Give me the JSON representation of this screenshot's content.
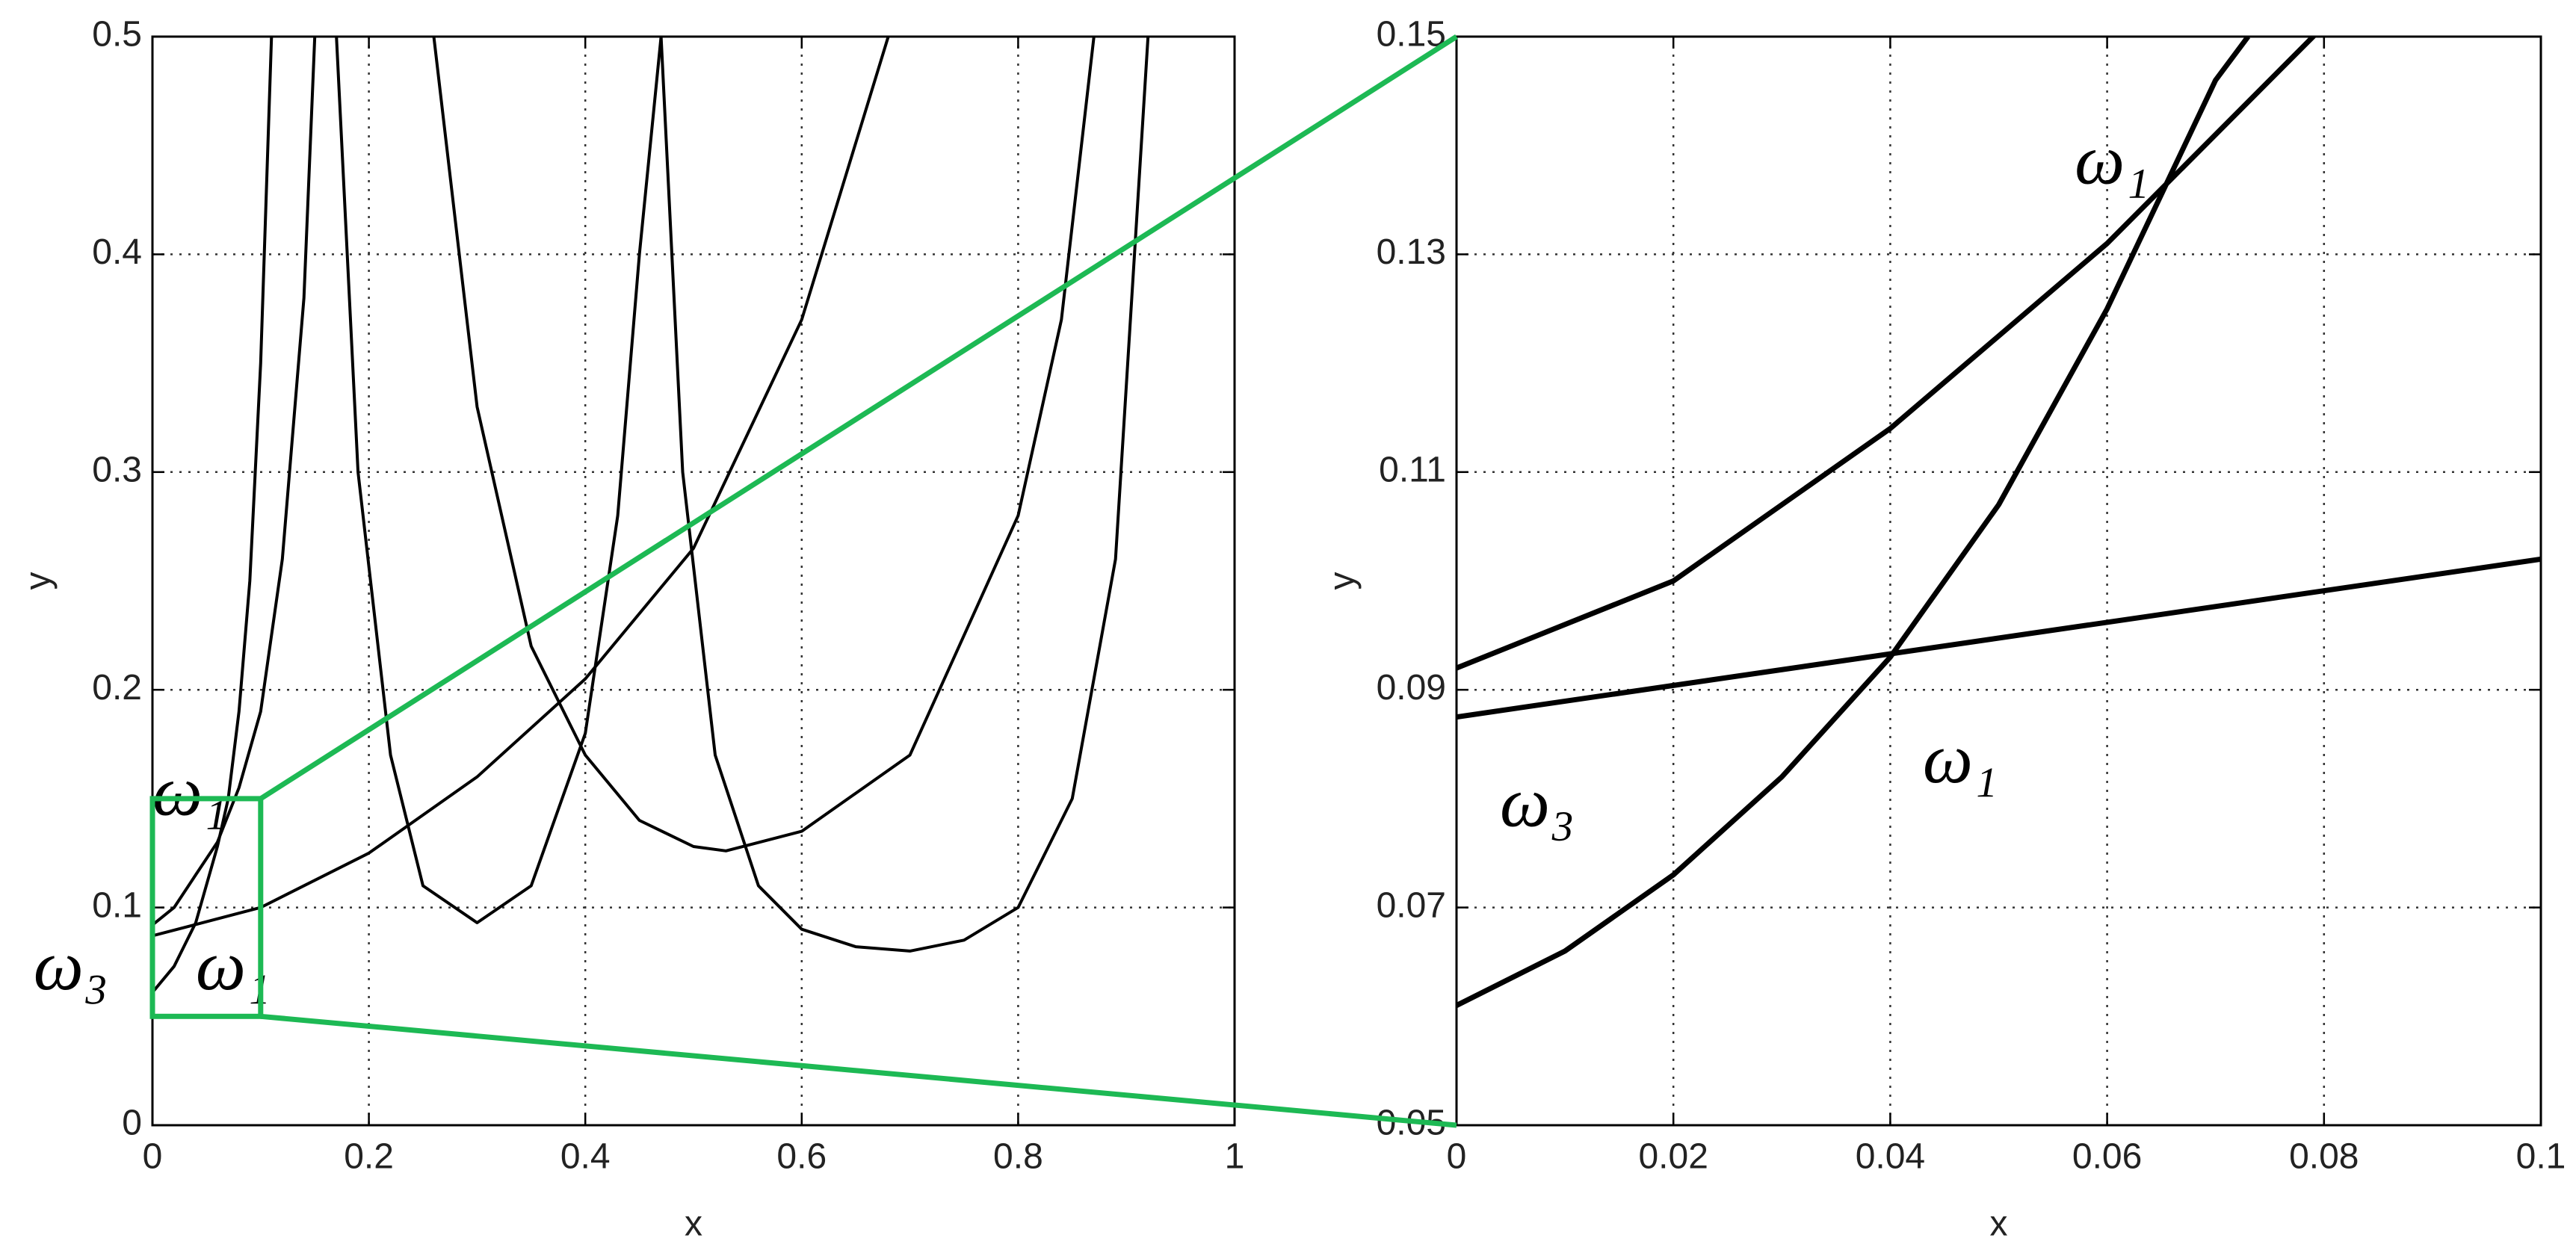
{
  "chart_data": [
    {
      "type": "line",
      "x_label": "x",
      "y_label": "y",
      "xlim": [
        0,
        1
      ],
      "ylim": [
        0,
        0.5
      ],
      "xticks": [
        0,
        0.2,
        0.4,
        0.6,
        0.8,
        1
      ],
      "yticks": [
        0,
        0.1,
        0.2,
        0.3,
        0.4,
        0.5
      ],
      "grid": true,
      "series": [
        {
          "color": "#000000",
          "x": [
            0,
            0.02,
            0.04,
            0.06,
            0.07,
            0.08,
            0.09,
            0.1,
            0.11
          ],
          "values": [
            0.061,
            0.073,
            0.093,
            0.128,
            0.15,
            0.19,
            0.25,
            0.35,
            0.5
          ]
        },
        {
          "color": "#000000",
          "x": [
            0,
            0.02,
            0.04,
            0.06,
            0.08,
            0.1,
            0.12,
            0.14,
            0.15
          ],
          "values": [
            0.092,
            0.1,
            0.115,
            0.13,
            0.155,
            0.19,
            0.26,
            0.38,
            0.5
          ]
        },
        {
          "color": "#000000",
          "x": [
            0.17,
            0.19,
            0.22,
            0.25,
            0.3,
            0.35,
            0.4,
            0.43,
            0.45,
            0.47
          ],
          "values": [
            0.5,
            0.3,
            0.17,
            0.11,
            0.093,
            0.11,
            0.18,
            0.28,
            0.4,
            0.5
          ]
        },
        {
          "color": "#000000",
          "x": [
            0.26,
            0.3,
            0.35,
            0.4,
            0.45,
            0.5,
            0.53,
            0.6,
            0.7,
            0.8,
            0.84,
            0.87
          ],
          "values": [
            0.5,
            0.33,
            0.22,
            0.17,
            0.14,
            0.128,
            0.126,
            0.135,
            0.17,
            0.28,
            0.37,
            0.5
          ]
        },
        {
          "color": "#000000",
          "x": [
            0.47,
            0.49,
            0.52,
            0.56,
            0.6,
            0.65,
            0.7,
            0.75,
            0.8,
            0.85,
            0.89,
            0.92
          ],
          "values": [
            0.5,
            0.3,
            0.17,
            0.11,
            0.09,
            0.082,
            0.08,
            0.085,
            0.1,
            0.15,
            0.26,
            0.5
          ]
        },
        {
          "color": "#000000",
          "x": [
            0,
            0.1,
            0.2,
            0.3,
            0.4,
            0.5,
            0.6,
            0.68
          ],
          "values": [
            0.087,
            0.1,
            0.125,
            0.16,
            0.205,
            0.265,
            0.37,
            0.5
          ]
        }
      ],
      "annotations": [
        {
          "text": "ω₁",
          "x": 0.0,
          "y": 0.15
        },
        {
          "text": "ω₃",
          "x": -0.11,
          "y": 0.07
        },
        {
          "text": "ω₁",
          "x": 0.04,
          "y": 0.07
        }
      ],
      "zoom_box": {
        "xlim": [
          0,
          0.1
        ],
        "ylim": [
          0.05,
          0.15
        ],
        "color": "#1db954"
      }
    },
    {
      "type": "line",
      "x_label": "x",
      "y_label": "y",
      "xlim": [
        0,
        0.1
      ],
      "ylim": [
        0.05,
        0.15
      ],
      "xticks": [
        0,
        0.02,
        0.04,
        0.06,
        0.08,
        0.1
      ],
      "yticks": [
        0.05,
        0.07,
        0.09,
        0.11,
        0.13,
        0.15
      ],
      "grid": true,
      "series": [
        {
          "color": "#000000",
          "x": [
            0,
            0.01,
            0.02,
            0.03,
            0.04,
            0.05,
            0.06,
            0.07,
            0.073
          ],
          "values": [
            0.061,
            0.066,
            0.073,
            0.082,
            0.093,
            0.107,
            0.125,
            0.146,
            0.15
          ]
        },
        {
          "color": "#000000",
          "x": [
            0,
            0.02,
            0.04,
            0.06,
            0.08
          ],
          "values": [
            0.092,
            0.1,
            0.114,
            0.131,
            0.151
          ]
        },
        {
          "color": "#000000",
          "x": [
            0,
            0.1
          ],
          "values": [
            0.0875,
            0.102
          ]
        }
      ],
      "annotations": [
        {
          "text": "ω₁",
          "x": 0.057,
          "y": 0.138
        },
        {
          "text": "ω₁",
          "x": 0.043,
          "y": 0.083
        },
        {
          "text": "ω₃",
          "x": 0.004,
          "y": 0.079
        }
      ]
    }
  ]
}
